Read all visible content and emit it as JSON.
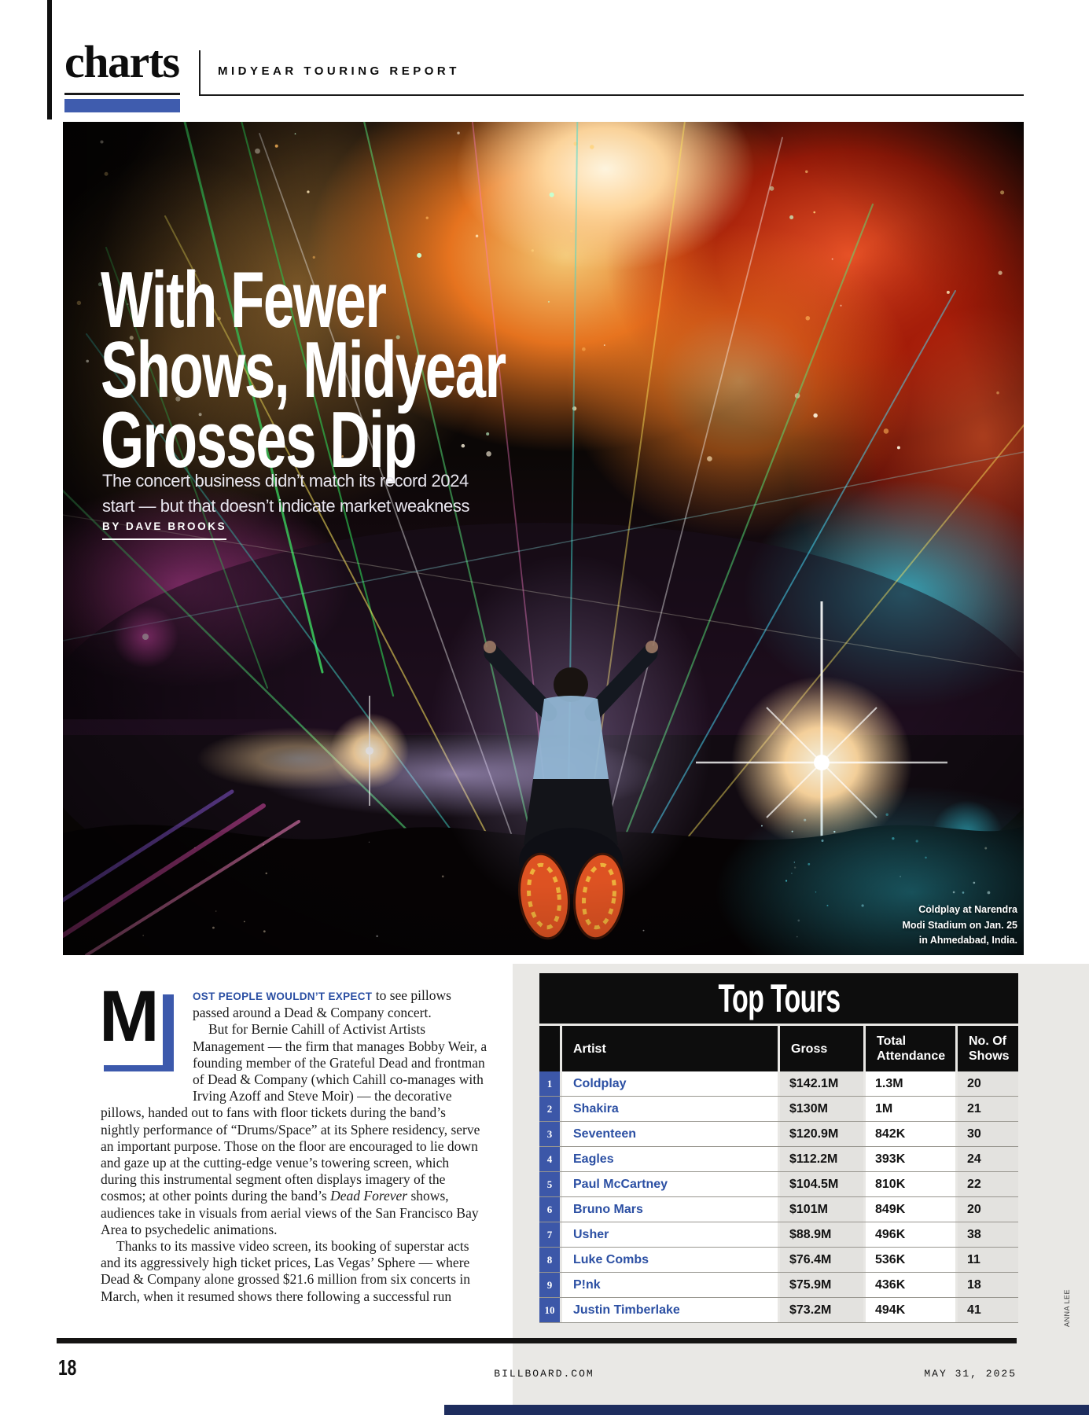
{
  "page": {
    "brand": "charts",
    "kicker": "MIDYEAR TOURING REPORT",
    "photo_credit": "ANNA LEE",
    "footer": {
      "page_number": "18",
      "site": "BILLBOARD.COM",
      "date": "MAY 31, 2025"
    },
    "colors": {
      "accent_blue": "#3f5cae",
      "rank_cell_blue": "#3c57a8",
      "artist_name_blue": "#2b4fa3",
      "panel_gray": "#e9e8e5",
      "column_band_gray": "#e3e2df",
      "bottom_bar_navy": "#1e2d5e"
    }
  },
  "article": {
    "headline_lines": [
      "With Fewer",
      "Shows, Midyear",
      "Grosses Dip"
    ],
    "subhead_lines": [
      "The concert business didn’t match its record 2024",
      "start — but that doesn’t indicate market weakness"
    ],
    "byline": "BY DAVE BROOKS",
    "photo_caption_lines": [
      "Coldplay at Narendra",
      "Modi Stadium on Jan. 25",
      "in Ahmedabad, India."
    ],
    "drop_cap": "M",
    "lead_in": "OST PEOPLE WOULDN’T EXPECT",
    "para1_rest": " to see pillows passed around a Dead & Company concert.",
    "para2_a": "But for Bernie Cahill of Activist Artists Management — the firm that manages Bobby Weir, a founding member of the Grateful Dead and frontman of Dead & Company (which Cahill co-manages with Irving Azoff and Steve Moir) — the decorative pillows, handed out to fans with floor tickets during the band’s nightly performance of “Drums/Space” at its Sphere residency, serve an important purpose. Those on the floor are encouraged to lie down and gaze up at the cutting-edge venue’s towering screen, which during this instrumental segment often displays imagery of the cosmos; at other points during the band’s ",
    "para2_italic": "Dead Forever",
    "para2_b": " shows, audiences take in visuals from aerial views of the San Francisco Bay Area to psychedelic animations.",
    "para3": "Thanks to its massive video screen, its booking of superstar acts and its aggressively high ticket prices, Las Vegas’ Sphere — where Dead & Company alone grossed $21.6 million from six concerts in March, when it resumed shows there following a successful run"
  },
  "chart_data": {
    "type": "table",
    "title": "Top Tours",
    "columns": [
      "Artist",
      "Gross",
      "Total Attendance",
      "No. Of Shows"
    ],
    "rows": [
      {
        "rank": "1",
        "artist": "Coldplay",
        "gross": "$142.1M",
        "attendance": "1.3M",
        "shows": "20"
      },
      {
        "rank": "2",
        "artist": "Shakira",
        "gross": "$130M",
        "attendance": "1M",
        "shows": "21"
      },
      {
        "rank": "3",
        "artist": "Seventeen",
        "gross": "$120.9M",
        "attendance": "842K",
        "shows": "30"
      },
      {
        "rank": "4",
        "artist": "Eagles",
        "gross": "$112.2M",
        "attendance": "393K",
        "shows": "24"
      },
      {
        "rank": "5",
        "artist": "Paul McCartney",
        "gross": "$104.5M",
        "attendance": "810K",
        "shows": "22"
      },
      {
        "rank": "6",
        "artist": "Bruno Mars",
        "gross": "$101M",
        "attendance": "849K",
        "shows": "20"
      },
      {
        "rank": "7",
        "artist": "Usher",
        "gross": "$88.9M",
        "attendance": "496K",
        "shows": "38"
      },
      {
        "rank": "8",
        "artist": "Luke Combs",
        "gross": "$76.4M",
        "attendance": "536K",
        "shows": "11"
      },
      {
        "rank": "9",
        "artist": "P!nk",
        "gross": "$75.9M",
        "attendance": "436K",
        "shows": "18"
      },
      {
        "rank": "10",
        "artist": "Justin Timberlake",
        "gross": "$73.2M",
        "attendance": "494K",
        "shows": "41"
      }
    ]
  }
}
